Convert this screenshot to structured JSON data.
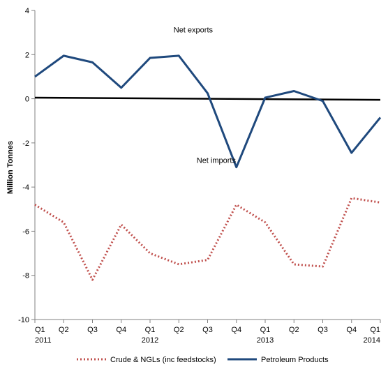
{
  "chart_data": {
    "type": "line",
    "ylabel": "Million Tonnes",
    "ylim": [
      -10,
      4
    ],
    "yticks": [
      4,
      2,
      0,
      -2,
      -4,
      -6,
      -8,
      -10
    ],
    "grid": false,
    "legend_position": "bottom",
    "categories": [
      "Q1",
      "Q2",
      "Q3",
      "Q4",
      "Q1",
      "Q2",
      "Q3",
      "Q4",
      "Q1",
      "Q2",
      "Q3",
      "Q4",
      "Q1"
    ],
    "year_labels": [
      "2011",
      "",
      "",
      "",
      "2012",
      "",
      "",
      "",
      "2013",
      "",
      "",
      "",
      "2014"
    ],
    "annotations": [
      {
        "text": "Net exports",
        "x": 5.5,
        "y": 3.0
      },
      {
        "text": "Net imports",
        "x": 6.3,
        "y": -2.9
      }
    ],
    "zero_line": {
      "x_start": 0,
      "y_start": 0.05,
      "x_end": 12,
      "y_end": -0.05
    },
    "series": [
      {
        "name": "Crude & NGLs (inc feedstocks)",
        "style": "dotted",
        "color": "#C0504D",
        "values": [
          -4.8,
          -5.6,
          -8.2,
          -5.7,
          -7.0,
          -7.5,
          -7.3,
          -4.8,
          -5.6,
          -7.5,
          -7.6,
          -4.5,
          -4.7
        ]
      },
      {
        "name": "Petroleum Products",
        "style": "solid",
        "color": "#1F497D",
        "values": [
          1.0,
          1.95,
          1.65,
          0.5,
          1.85,
          1.95,
          0.25,
          -3.1,
          0.05,
          0.35,
          -0.1,
          -2.45,
          -0.85
        ]
      }
    ]
  }
}
